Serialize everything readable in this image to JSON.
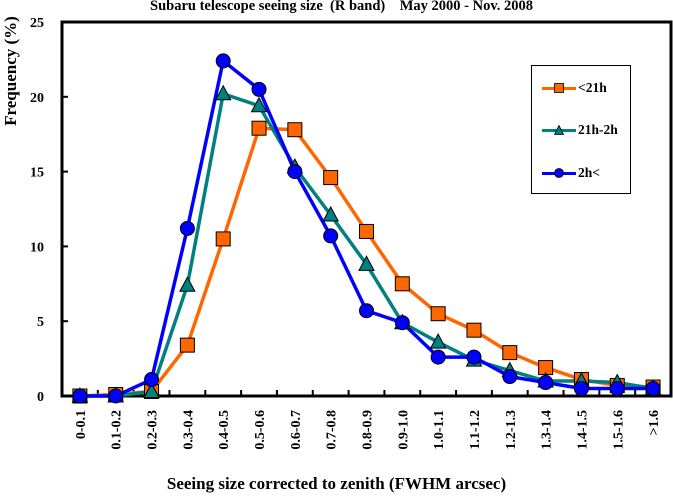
{
  "chart_data": {
    "type": "line",
    "title": "Subaru telescope seeing size  (R band)    May 2000 - Nov. 2008",
    "xlabel": "Seeing size corrected to zenith (FWHM arcsec)",
    "ylabel": "Frequency (%)",
    "ylim": [
      0,
      25
    ],
    "yticks": [
      0,
      5,
      10,
      15,
      20,
      25
    ],
    "grid": false,
    "legend_position": "top-right",
    "categories": [
      "0-0.1",
      "0.1-0.2",
      "0.2-0.3",
      "0.3-0.4",
      "0.4-0.5",
      "0.5-0.6",
      "0.6-0.7",
      "0.7-0.8",
      "0.8-0.9",
      "0.9-1.0",
      "1.0-1.1",
      "1.1-1.2",
      "1.2-1.3",
      "1.3-1.4",
      "1.4-1.5",
      "1.5-1.6",
      ">1.6"
    ],
    "series": [
      {
        "name": "<21h",
        "color": "#FF6600",
        "marker": "square",
        "values": [
          0.0,
          0.1,
          0.3,
          3.4,
          10.5,
          17.9,
          17.8,
          14.6,
          11.0,
          7.5,
          5.5,
          4.4,
          2.9,
          1.9,
          1.1,
          0.7,
          0.6
        ]
      },
      {
        "name": "21h-2h",
        "color": "#008080",
        "marker": "triangle",
        "values": [
          0.0,
          0.0,
          0.3,
          7.4,
          20.2,
          19.4,
          15.3,
          12.1,
          8.8,
          4.9,
          3.6,
          2.4,
          1.7,
          1.0,
          1.0,
          0.9,
          0.5
        ]
      },
      {
        "name": "2h<",
        "color": "#0000FF",
        "marker": "circle",
        "values": [
          0.0,
          0.0,
          1.1,
          11.2,
          22.4,
          20.5,
          15.0,
          10.7,
          5.7,
          4.9,
          2.6,
          2.6,
          1.3,
          0.9,
          0.5,
          0.5,
          0.5
        ]
      }
    ]
  }
}
